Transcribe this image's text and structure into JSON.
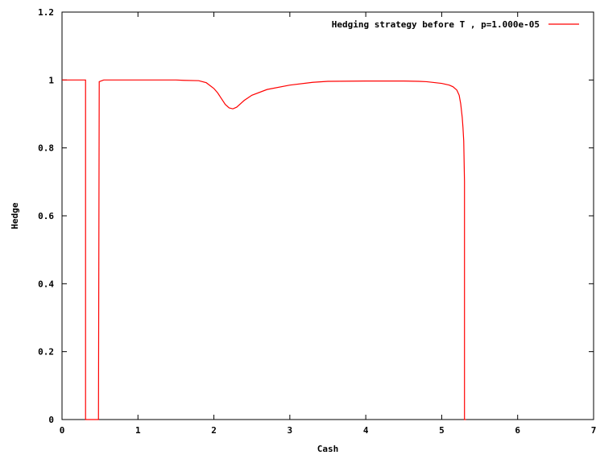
{
  "chart_data": {
    "type": "line",
    "title": "",
    "xlabel": "Cash",
    "ylabel": "Hedge",
    "xlim": [
      0,
      7
    ],
    "ylim": [
      0,
      1.2
    ],
    "x_ticks": [
      "0",
      "1",
      "2",
      "3",
      "4",
      "5",
      "6",
      "7"
    ],
    "y_ticks": [
      "0",
      "0.2",
      "0.4",
      "0.6",
      "0.8",
      "1",
      "1.2"
    ],
    "grid": false,
    "legend_position": "top-right",
    "series": [
      {
        "name": "Hedging strategy before T  , p=1.000e-05",
        "color": "#ff0000",
        "x": [
          0,
          0.31,
          0.31,
          0.32,
          0.32,
          0.48,
          0.48,
          0.49,
          0.49,
          0.55,
          1.0,
          1.5,
          1.6,
          1.8,
          1.9,
          2.0,
          2.05,
          2.1,
          2.15,
          2.2,
          2.25,
          2.3,
          2.4,
          2.5,
          2.7,
          3.0,
          3.3,
          3.5,
          4.0,
          4.5,
          4.7,
          4.8,
          5.0,
          5.1,
          5.15,
          5.2,
          5.23,
          5.25,
          5.27,
          5.28,
          5.29,
          5.3,
          5.3,
          5.32,
          5.32
        ],
        "y": [
          1.0,
          1.0,
          0,
          0,
          0,
          0,
          0,
          0.99,
          0.995,
          1.0,
          1.0,
          1.0,
          0.999,
          0.998,
          0.992,
          0.975,
          0.962,
          0.945,
          0.928,
          0.918,
          0.915,
          0.92,
          0.94,
          0.955,
          0.972,
          0.985,
          0.993,
          0.996,
          0.997,
          0.997,
          0.996,
          0.995,
          0.99,
          0.985,
          0.98,
          0.97,
          0.955,
          0.93,
          0.89,
          0.86,
          0.82,
          0.7,
          0,
          0,
          0
        ]
      }
    ]
  }
}
